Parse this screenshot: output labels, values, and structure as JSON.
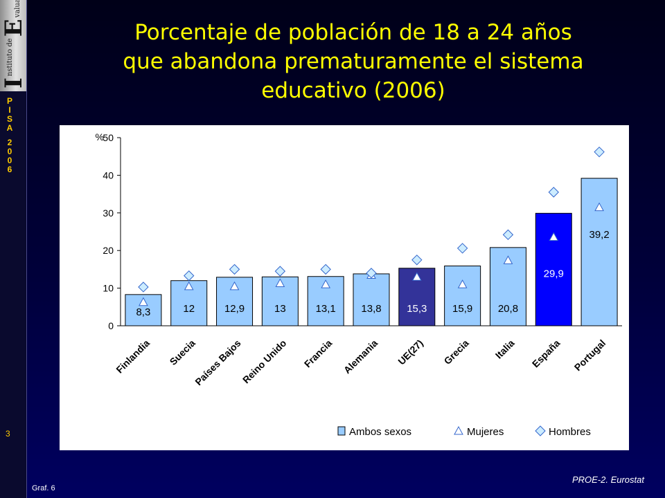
{
  "logo": {
    "initial_i": "I",
    "initial_e": "E",
    "line1": "nstituto de",
    "line2": "valuación"
  },
  "sidebar": {
    "pisa": [
      "P",
      "I",
      "S",
      "A",
      "2",
      "0",
      "0",
      "6"
    ],
    "page": "3"
  },
  "title": [
    "Porcentaje de población de 18 a 24 años",
    "que abandona prematuramente el sistema",
    "educativo (2006)"
  ],
  "footer": {
    "graf": "Graf. 6",
    "source": "PROE-2. Eurostat"
  },
  "colors": {
    "default_bar": "#99ccff",
    "ue_bar": "#333399",
    "spain_bar": "#0000ff",
    "title": "#ffff00",
    "accent": "#ffcc00"
  },
  "chart_data": {
    "type": "bar",
    "unit": "%",
    "categories": [
      "Finlandia",
      "Suecia",
      "Países Bajos",
      "Reino Unido",
      "Francia",
      "Alemania",
      "UE(27)",
      "Grecia",
      "Italia",
      "España",
      "Portugal"
    ],
    "ylim": [
      0,
      50
    ],
    "yticks": [
      "0",
      "10",
      "20",
      "30",
      "40",
      "50"
    ],
    "grid": false,
    "legend_position": "bottom",
    "series": [
      {
        "name": "Ambos sexos",
        "kind": "bar",
        "values": [
          8.3,
          12,
          12.9,
          13,
          13.1,
          13.8,
          15.3,
          15.9,
          20.8,
          29.9,
          39.2
        ],
        "labels": [
          "8,3",
          "12",
          "12,9",
          "13",
          "13,1",
          "13,8",
          "15,3",
          "15,9",
          "20,8",
          "29,9",
          "39,2"
        ]
      },
      {
        "name": "Mujeres",
        "kind": "marker-triangle",
        "values": [
          6.3,
          10.5,
          10.5,
          11.3,
          11,
          13.5,
          13,
          11,
          17.4,
          23.6,
          31.5
        ]
      },
      {
        "name": "Hombres",
        "kind": "marker-diamond",
        "values": [
          10.3,
          13.3,
          15,
          14.5,
          15,
          14,
          17.5,
          20.6,
          24.2,
          35.5,
          46.2
        ]
      }
    ]
  }
}
